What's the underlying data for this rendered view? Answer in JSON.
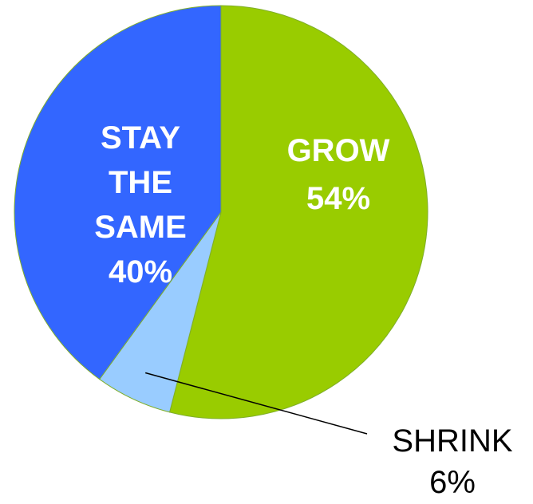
{
  "chart_data": {
    "type": "pie",
    "slices": [
      {
        "label_lines": [
          "GROW",
          "54%"
        ],
        "value": 54,
        "color": "#99cc00"
      },
      {
        "label_lines": [
          "SHRINK",
          "6%"
        ],
        "value": 6,
        "color": "#99ccff"
      },
      {
        "label_lines": [
          "STAY",
          "THE",
          "SAME",
          "40%"
        ],
        "value": 40,
        "color": "#3366ff"
      }
    ],
    "label_colors": {
      "inside": "#ffffff",
      "outside": "#000000"
    }
  }
}
